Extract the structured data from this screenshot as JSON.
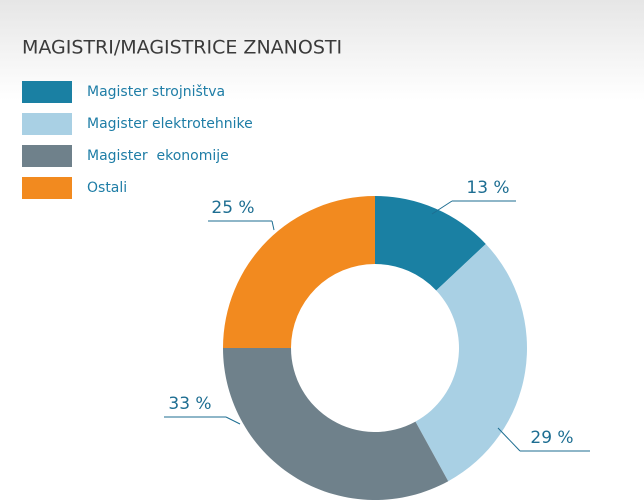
{
  "chart_data": {
    "type": "donut",
    "title": "MAGISTRI/MAGISTRICE ZNANOSTI",
    "categories": [
      "Magister strojništva",
      "Magister elektrotehnike",
      "Magister  ekonomije",
      "Ostali"
    ],
    "values": [
      13,
      29,
      33,
      25
    ],
    "value_labels": [
      "13 %",
      "29 %",
      "33 %",
      "25 %"
    ],
    "colors": [
      "#1a80a3",
      "#a9d0e4",
      "#6f818b",
      "#f28a1f"
    ],
    "legend": "top-left"
  }
}
